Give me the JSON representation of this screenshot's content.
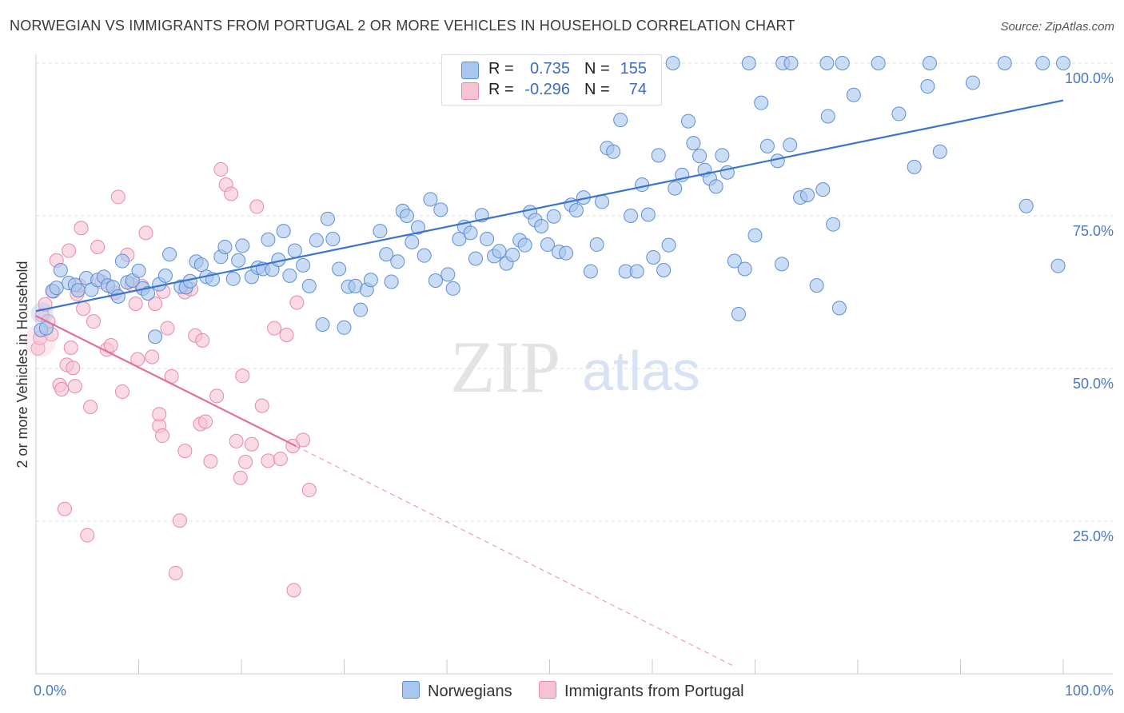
{
  "title": "NORWEGIAN VS IMMIGRANTS FROM PORTUGAL 2 OR MORE VEHICLES IN HOUSEHOLD CORRELATION CHART",
  "source": "Source: ZipAtlas.com",
  "watermark": {
    "zip": "ZIP",
    "atlas": "atlas"
  },
  "colors": {
    "blue_fill": "#a9c6ef",
    "blue_stroke": "#5b8fd6",
    "blue_line": "#3b74cc",
    "pink_fill": "#f6c3d3",
    "pink_stroke": "#e989a8",
    "pink_line": "#e3709a",
    "grid": "#dcdcdc",
    "tick_text": "#4a78c2"
  },
  "legend": {
    "rows": [
      {
        "r_label": "R =",
        "r_value": "0.735",
        "n_label": "N =",
        "n_value": "155",
        "color": "#a9c6ef"
      },
      {
        "r_label": "R =",
        "r_value": "-0.296",
        "n_label": "N =",
        "n_value": "74",
        "color": "#f6c3d3"
      }
    ]
  },
  "bottom_legend": [
    {
      "label": "Norwegians",
      "color": "#a9c6ef"
    },
    {
      "label": "Immigrants from Portugal",
      "color": "#f6c3d3"
    }
  ],
  "chart_data": {
    "type": "scatter",
    "ylabel": "2 or more Vehicles in Household",
    "xlim": [
      0,
      100
    ],
    "ylim": [
      0,
      100
    ],
    "x_ticks": [
      {
        "value": 0,
        "label": "0.0%"
      },
      {
        "value": 100,
        "label": "100.0%"
      }
    ],
    "y_ticks": [
      {
        "value": 25,
        "label": "25.0%"
      },
      {
        "value": 50,
        "label": "50.0%"
      },
      {
        "value": 75,
        "label": "75.0%"
      },
      {
        "value": 100,
        "label": "100.0%"
      }
    ],
    "grid": true,
    "legend_position": "top-center",
    "series": [
      {
        "name": "Norwegians",
        "color": "#a9c6ef",
        "trend": {
          "x": [
            0,
            100
          ],
          "y": [
            59.4,
            93.9
          ],
          "style": "solid"
        },
        "points": [
          [
            0.5,
            56.3
          ],
          [
            1.0,
            56.6
          ],
          [
            1.6,
            62.7
          ],
          [
            2.0,
            63.2
          ],
          [
            2.4,
            66.1
          ],
          [
            3.2,
            64.0
          ],
          [
            3.8,
            63.7
          ],
          [
            4.1,
            62.8
          ],
          [
            4.9,
            64.8
          ],
          [
            5.4,
            62.9
          ],
          [
            6.0,
            64.5
          ],
          [
            6.6,
            65.0
          ],
          [
            7.0,
            63.6
          ],
          [
            7.5,
            63.3
          ],
          [
            8.0,
            61.8
          ],
          [
            8.4,
            67.6
          ],
          [
            8.9,
            64.1
          ],
          [
            9.4,
            64.4
          ],
          [
            10.0,
            66.0
          ],
          [
            10.4,
            63.1
          ],
          [
            10.9,
            62.3
          ],
          [
            11.6,
            55.2
          ],
          [
            12.0,
            63.8
          ],
          [
            12.6,
            65.2
          ],
          [
            13.0,
            68.7
          ],
          [
            14.1,
            63.4
          ],
          [
            14.6,
            63.3
          ],
          [
            15.0,
            64.3
          ],
          [
            15.6,
            67.5
          ],
          [
            16.1,
            67.0
          ],
          [
            16.6,
            65.0
          ],
          [
            17.2,
            64.6
          ],
          [
            18.0,
            68.3
          ],
          [
            18.4,
            69.9
          ],
          [
            19.2,
            64.7
          ],
          [
            19.7,
            67.7
          ],
          [
            20.1,
            70.1
          ],
          [
            21.0,
            65.0
          ],
          [
            21.6,
            66.5
          ],
          [
            22.1,
            66.3
          ],
          [
            22.6,
            71.1
          ],
          [
            23.0,
            66.2
          ],
          [
            23.6,
            67.8
          ],
          [
            24.1,
            72.5
          ],
          [
            24.7,
            65.2
          ],
          [
            25.2,
            69.3
          ],
          [
            26.0,
            66.9
          ],
          [
            26.6,
            63.5
          ],
          [
            27.3,
            71.0
          ],
          [
            27.9,
            57.2
          ],
          [
            28.4,
            74.5
          ],
          [
            28.9,
            71.2
          ],
          [
            29.5,
            66.3
          ],
          [
            30.0,
            56.7
          ],
          [
            30.4,
            63.4
          ],
          [
            31.1,
            63.5
          ],
          [
            31.6,
            59.6
          ],
          [
            32.2,
            62.9
          ],
          [
            32.6,
            64.5
          ],
          [
            33.5,
            72.5
          ],
          [
            34.1,
            68.7
          ],
          [
            34.6,
            64.2
          ],
          [
            35.2,
            67.5
          ],
          [
            35.7,
            75.8
          ],
          [
            36.1,
            75.0
          ],
          [
            36.6,
            70.7
          ],
          [
            37.2,
            73.1
          ],
          [
            37.8,
            68.5
          ],
          [
            38.4,
            77.7
          ],
          [
            38.9,
            64.4
          ],
          [
            39.4,
            76.0
          ],
          [
            40.1,
            65.4
          ],
          [
            40.6,
            63.1
          ],
          [
            41.2,
            71.2
          ],
          [
            41.7,
            73.2
          ],
          [
            42.3,
            72.2
          ],
          [
            42.8,
            68.0
          ],
          [
            43.4,
            75.1
          ],
          [
            43.9,
            71.2
          ],
          [
            44.6,
            68.4
          ],
          [
            45.1,
            69.2
          ],
          [
            45.8,
            67.2
          ],
          [
            46.4,
            68.6
          ],
          [
            47.1,
            71.0
          ],
          [
            47.6,
            70.2
          ],
          [
            48.1,
            75.6
          ],
          [
            48.6,
            74.3
          ],
          [
            49.2,
            73.3
          ],
          [
            49.8,
            70.3
          ],
          [
            50.4,
            74.9
          ],
          [
            50.9,
            69.1
          ],
          [
            51.6,
            68.9
          ],
          [
            52.1,
            76.8
          ],
          [
            52.6,
            75.9
          ],
          [
            53.3,
            78.0
          ],
          [
            54.0,
            65.9
          ],
          [
            54.6,
            70.3
          ],
          [
            55.1,
            77.3
          ],
          [
            55.6,
            86.1
          ],
          [
            56.2,
            85.5
          ],
          [
            56.9,
            90.7
          ],
          [
            57.4,
            65.9
          ],
          [
            57.9,
            75.0
          ],
          [
            58.5,
            65.9
          ],
          [
            59.0,
            80.1
          ],
          [
            59.6,
            75.2
          ],
          [
            60.1,
            68.2
          ],
          [
            60.6,
            84.9
          ],
          [
            61.1,
            66.1
          ],
          [
            61.6,
            70.2
          ],
          [
            62.2,
            79.5
          ],
          [
            62.9,
            81.7
          ],
          [
            63.5,
            90.5
          ],
          [
            64.0,
            86.9
          ],
          [
            64.6,
            84.8
          ],
          [
            65.1,
            82.5
          ],
          [
            65.6,
            81.1
          ],
          [
            66.2,
            79.8
          ],
          [
            66.8,
            84.9
          ],
          [
            67.3,
            82.1
          ],
          [
            68.0,
            67.6
          ],
          [
            68.4,
            58.9
          ],
          [
            69.0,
            66.3
          ],
          [
            70.0,
            71.8
          ],
          [
            70.6,
            93.5
          ],
          [
            71.2,
            86.4
          ],
          [
            72.2,
            84.0
          ],
          [
            72.6,
            67.1
          ],
          [
            73.4,
            86.6
          ],
          [
            74.4,
            78.0
          ],
          [
            75.1,
            78.4
          ],
          [
            76.0,
            63.6
          ],
          [
            76.6,
            79.3
          ],
          [
            77.1,
            91.3
          ],
          [
            77.6,
            73.6
          ],
          [
            78.2,
            59.9
          ],
          [
            79.6,
            94.8
          ],
          [
            82.0,
            100
          ],
          [
            84.0,
            91.7
          ],
          [
            85.5,
            83.0
          ],
          [
            86.8,
            96.2
          ],
          [
            88.0,
            85.5
          ],
          [
            91.2,
            96.8
          ],
          [
            96.4,
            76.6
          ],
          [
            98.0,
            100
          ],
          [
            100.0,
            100
          ],
          [
            62.0,
            100
          ],
          [
            69.4,
            100
          ],
          [
            72.7,
            100
          ],
          [
            73.5,
            100
          ],
          [
            77.0,
            100
          ],
          [
            78.5,
            100
          ],
          [
            87.0,
            100
          ],
          [
            94.3,
            100
          ],
          [
            99.5,
            66.8
          ]
        ]
      },
      {
        "name": "Immigrants from Portugal",
        "color": "#f6c3d3",
        "trend": {
          "x": [
            0,
            25.3
          ],
          "y": [
            58.6,
            37.3
          ],
          "dashed_to": {
            "x": 68,
            "y": 1.2
          }
        },
        "points": [
          [
            0.2,
            53.3
          ],
          [
            0.4,
            55.0
          ],
          [
            0.6,
            58.7
          ],
          [
            0.9,
            60.5
          ],
          [
            1.2,
            57.7
          ],
          [
            1.5,
            55.6
          ],
          [
            1.7,
            62.6
          ],
          [
            2.0,
            67.7
          ],
          [
            2.3,
            47.3
          ],
          [
            2.5,
            46.6
          ],
          [
            2.8,
            27.0
          ],
          [
            3.0,
            50.6
          ],
          [
            3.2,
            69.3
          ],
          [
            3.4,
            53.4
          ],
          [
            3.6,
            50.1
          ],
          [
            3.8,
            47.1
          ],
          [
            4.0,
            62.2
          ],
          [
            4.2,
            63.6
          ],
          [
            4.4,
            73.0
          ],
          [
            4.6,
            59.8
          ],
          [
            5.0,
            22.7
          ],
          [
            5.3,
            43.7
          ],
          [
            5.6,
            57.7
          ],
          [
            6.0,
            69.9
          ],
          [
            6.4,
            64.2
          ],
          [
            6.9,
            53.1
          ],
          [
            7.3,
            53.8
          ],
          [
            7.7,
            62.4
          ],
          [
            8.0,
            78.1
          ],
          [
            8.4,
            46.2
          ],
          [
            8.9,
            68.6
          ],
          [
            9.3,
            63.8
          ],
          [
            9.9,
            51.5
          ],
          [
            10.3,
            63.5
          ],
          [
            10.7,
            72.2
          ],
          [
            11.3,
            51.9
          ],
          [
            11.6,
            60.6
          ],
          [
            12.0,
            40.6
          ],
          [
            12.4,
            62.6
          ],
          [
            12.8,
            56.6
          ],
          [
            13.2,
            48.7
          ],
          [
            13.6,
            16.5
          ],
          [
            14.0,
            25.1
          ],
          [
            14.5,
            62.5
          ],
          [
            15.1,
            63.0
          ],
          [
            15.5,
            55.4
          ],
          [
            16.0,
            40.9
          ],
          [
            16.5,
            41.3
          ],
          [
            17.0,
            34.8
          ],
          [
            17.6,
            45.5
          ],
          [
            18.0,
            82.6
          ],
          [
            18.5,
            80.1
          ],
          [
            19.0,
            78.6
          ],
          [
            19.5,
            38.1
          ],
          [
            19.9,
            32.1
          ],
          [
            20.4,
            34.7
          ],
          [
            21.0,
            37.6
          ],
          [
            21.5,
            76.5
          ],
          [
            22.0,
            43.9
          ],
          [
            22.6,
            34.9
          ],
          [
            23.2,
            56.6
          ],
          [
            23.8,
            35.2
          ],
          [
            24.4,
            55.5
          ],
          [
            25.0,
            37.3
          ],
          [
            25.4,
            60.8
          ],
          [
            26.0,
            38.3
          ],
          [
            26.6,
            30.1
          ],
          [
            14.5,
            36.5
          ],
          [
            12.3,
            39.0
          ],
          [
            20.1,
            48.8
          ],
          [
            9.7,
            60.6
          ],
          [
            16.2,
            54.6
          ],
          [
            25.1,
            13.7
          ],
          [
            12.0,
            42.5
          ]
        ]
      }
    ]
  }
}
